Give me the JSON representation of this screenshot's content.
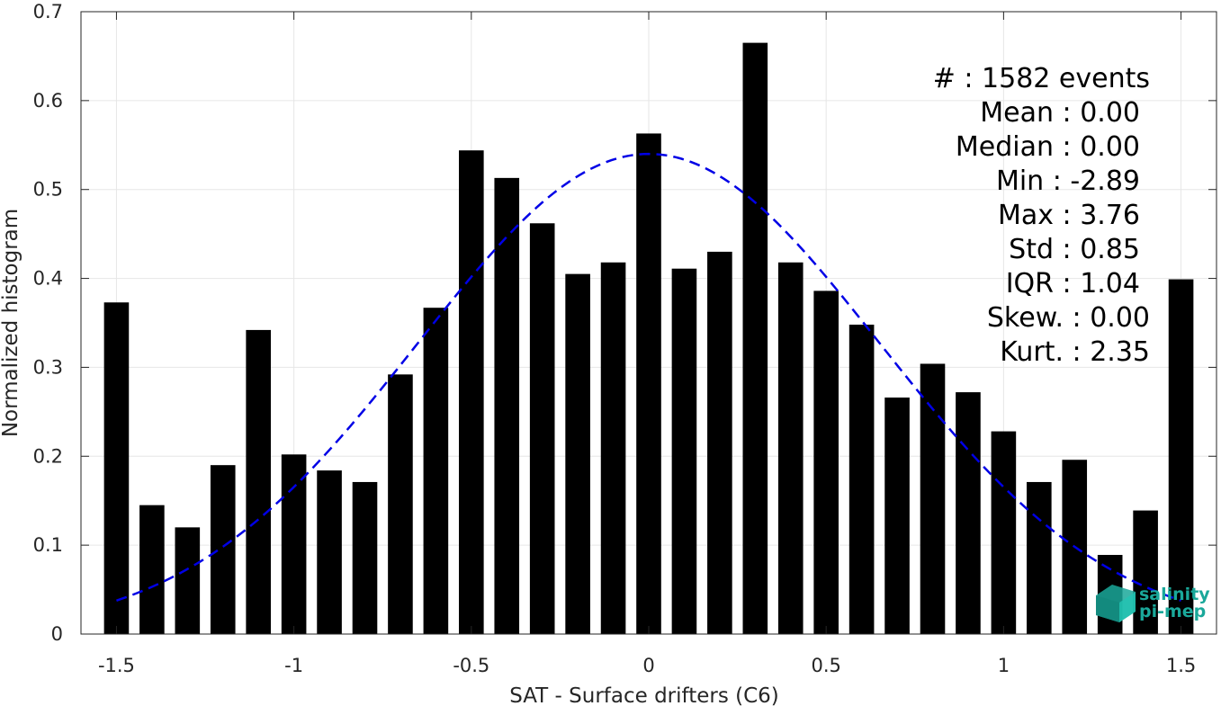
{
  "chart_data": {
    "type": "bar",
    "xlabel": "SAT - Surface drifters (C6)",
    "ylabel": "Normalized histogram",
    "xlim": [
      -1.6,
      1.6
    ],
    "ylim": [
      0,
      0.7
    ],
    "xticks": [
      -1.5,
      -1,
      -0.5,
      0,
      0.5,
      1,
      1.5
    ],
    "xtick_labels": [
      "-1.5",
      "-1",
      "-0.5",
      "0",
      "0.5",
      "1",
      "1.5"
    ],
    "yticks": [
      0,
      0.1,
      0.2,
      0.3,
      0.4,
      0.5,
      0.6,
      0.7
    ],
    "ytick_labels": [
      "0",
      "0.1",
      "0.2",
      "0.3",
      "0.4",
      "0.5",
      "0.6",
      "0.7"
    ],
    "grid": true,
    "bar_color": "#000000",
    "bar_width": 0.07,
    "bars": {
      "x": [
        -1.5,
        -1.4,
        -1.3,
        -1.2,
        -1.1,
        -1.0,
        -0.9,
        -0.8,
        -0.7,
        -0.6,
        -0.5,
        -0.4,
        -0.3,
        -0.2,
        -0.1,
        0.0,
        0.1,
        0.2,
        0.3,
        0.4,
        0.5,
        0.6,
        0.7,
        0.8,
        0.9,
        1.0,
        1.1,
        1.2,
        1.3,
        1.4,
        1.5
      ],
      "values": [
        0.373,
        0.145,
        0.12,
        0.19,
        0.342,
        0.202,
        0.184,
        0.171,
        0.292,
        0.367,
        0.544,
        0.513,
        0.462,
        0.405,
        0.418,
        0.563,
        0.411,
        0.43,
        0.665,
        0.418,
        0.386,
        0.348,
        0.266,
        0.304,
        0.272,
        0.228,
        0.171,
        0.196,
        0.089,
        0.139,
        0.399
      ]
    },
    "fit_curve": {
      "style": "dashed",
      "color": "#0000e6",
      "mean": 0.0,
      "peak": 0.54,
      "sigma": 0.65,
      "x_range": [
        -1.5,
        1.5
      ]
    },
    "annotations": [
      "#  : 1582 events",
      "Mean : 0.00",
      "Median : 0.00",
      "Min : -2.89",
      "Max : 3.76",
      "Std : 0.85",
      "IQR : 1.04",
      "Skew. : 0.00",
      "Kurt. : 2.35"
    ]
  },
  "logo": {
    "line1": "salinity",
    "line2": "pi-mep",
    "color": "#1aa89a"
  }
}
